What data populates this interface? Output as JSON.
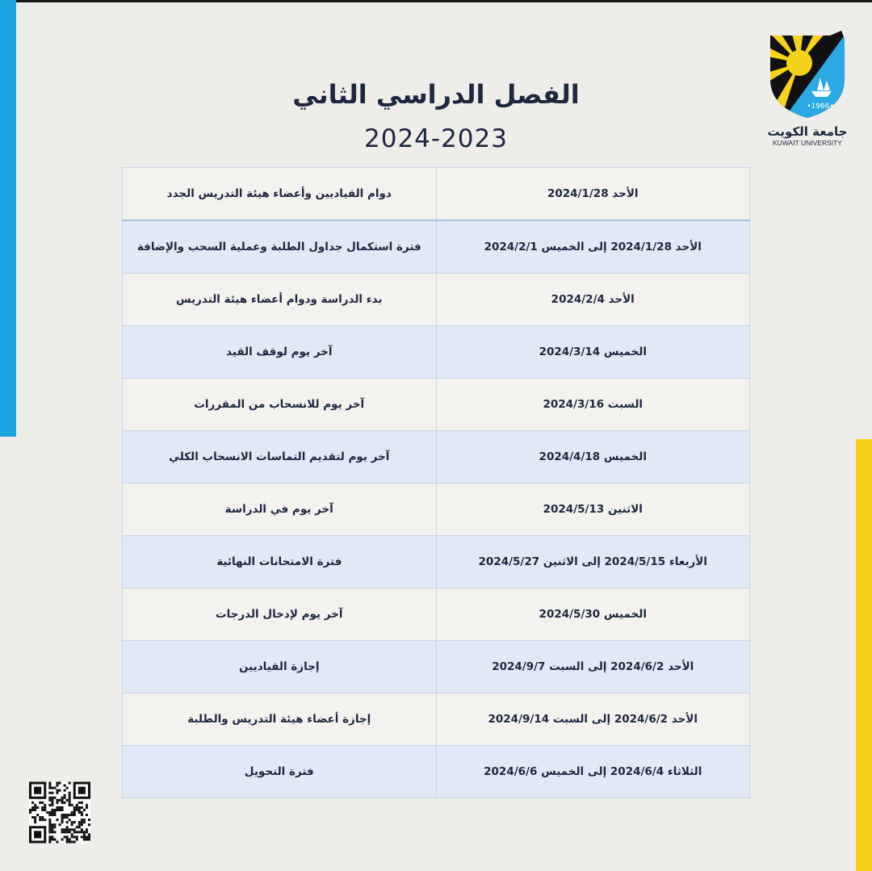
{
  "header": {
    "title": "الفصل الدراسي الثاني",
    "year": "2024-2023"
  },
  "logo": {
    "name_ar": "جامعة الكويت",
    "name_en": "KUWAIT UNIVERSITY",
    "founded": "•1966•"
  },
  "colors": {
    "left_bar": "#1ba6df",
    "right_bar": "#f6d21c",
    "row_odd": "#f3f2ee",
    "row_even": "#e0e9f5"
  },
  "rows": [
    {
      "date": "الأحد 2024/1/28",
      "event": "دوام القياديين وأعضاء هيئة التدريس الجدد"
    },
    {
      "date": "الأحد 2024/1/28 إلى الخميس 2024/2/1",
      "event": "فترة استكمال جداول الطلبة وعملية السحب والإضافة"
    },
    {
      "date": "الأحد 2024/2/4",
      "event": "بدء الدراسة ودوام أعضاء هيئة التدريس"
    },
    {
      "date": "الخميس 2024/3/14",
      "event": "آخر يوم لوقف القيد"
    },
    {
      "date": "السبت 2024/3/16",
      "event": "آخر يوم للانسحاب من المقررات"
    },
    {
      "date": "الخميس 2024/4/18",
      "event": "آخر يوم لتقديم التماسات الانسحاب الكلي"
    },
    {
      "date": "الاثنين 2024/5/13",
      "event": "آخر يوم في الدراسة"
    },
    {
      "date": "الأربعاء 2024/5/15 إلى الاثنين 2024/5/27",
      "event": "فترة الامتحانات النهائية"
    },
    {
      "date": "الخميس 2024/5/30",
      "event": "آخر يوم لإدخال الدرجات"
    },
    {
      "date": "الأحد 2024/6/2 إلى السبت 2024/9/7",
      "event": "إجازة القياديين"
    },
    {
      "date": "الأحد 2024/6/2 إلى السبت 2024/9/14",
      "event": "إجازة أعضاء هيئة التدريس والطلبة"
    },
    {
      "date": "الثلاثاء 2024/6/4 إلى الخميس 2024/6/6",
      "event": "فترة التحويل"
    }
  ]
}
